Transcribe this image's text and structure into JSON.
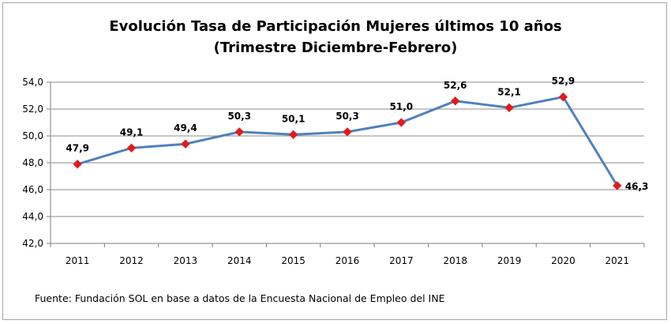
{
  "chart_data": {
    "type": "line",
    "title": [
      "Evolución Tasa de Participación Mujeres últimos 10 años",
      "(Trimestre Diciembre-Febrero)"
    ],
    "categories": [
      "2011",
      "2012",
      "2013",
      "2014",
      "2015",
      "2016",
      "2017",
      "2018",
      "2019",
      "2020",
      "2021"
    ],
    "values": [
      47.9,
      49.1,
      49.4,
      50.3,
      50.1,
      50.3,
      51.0,
      52.6,
      52.1,
      52.9,
      46.3
    ],
    "data_labels": [
      "47,9",
      "49,1",
      "49,4",
      "50,3",
      "50,1",
      "50,3",
      "51,0",
      "52,6",
      "52,1",
      "52,9",
      "46,3"
    ],
    "ylim": [
      42,
      54
    ],
    "yticks": [
      42,
      44,
      46,
      48,
      50,
      52,
      54
    ],
    "ytick_labels": [
      "42,0",
      "44,0",
      "46,0",
      "48,0",
      "50,0",
      "52,0",
      "54,0"
    ],
    "grid": true,
    "xlabel": "",
    "ylabel": "",
    "legend": "none",
    "line_color": "#4f81bd",
    "marker_color": "#e31a1c",
    "grid_color": "#8c8c8c"
  },
  "source_note": "Fuente: Fundación SOL en base a datos de la Encuesta Nacional de Empleo del INE"
}
